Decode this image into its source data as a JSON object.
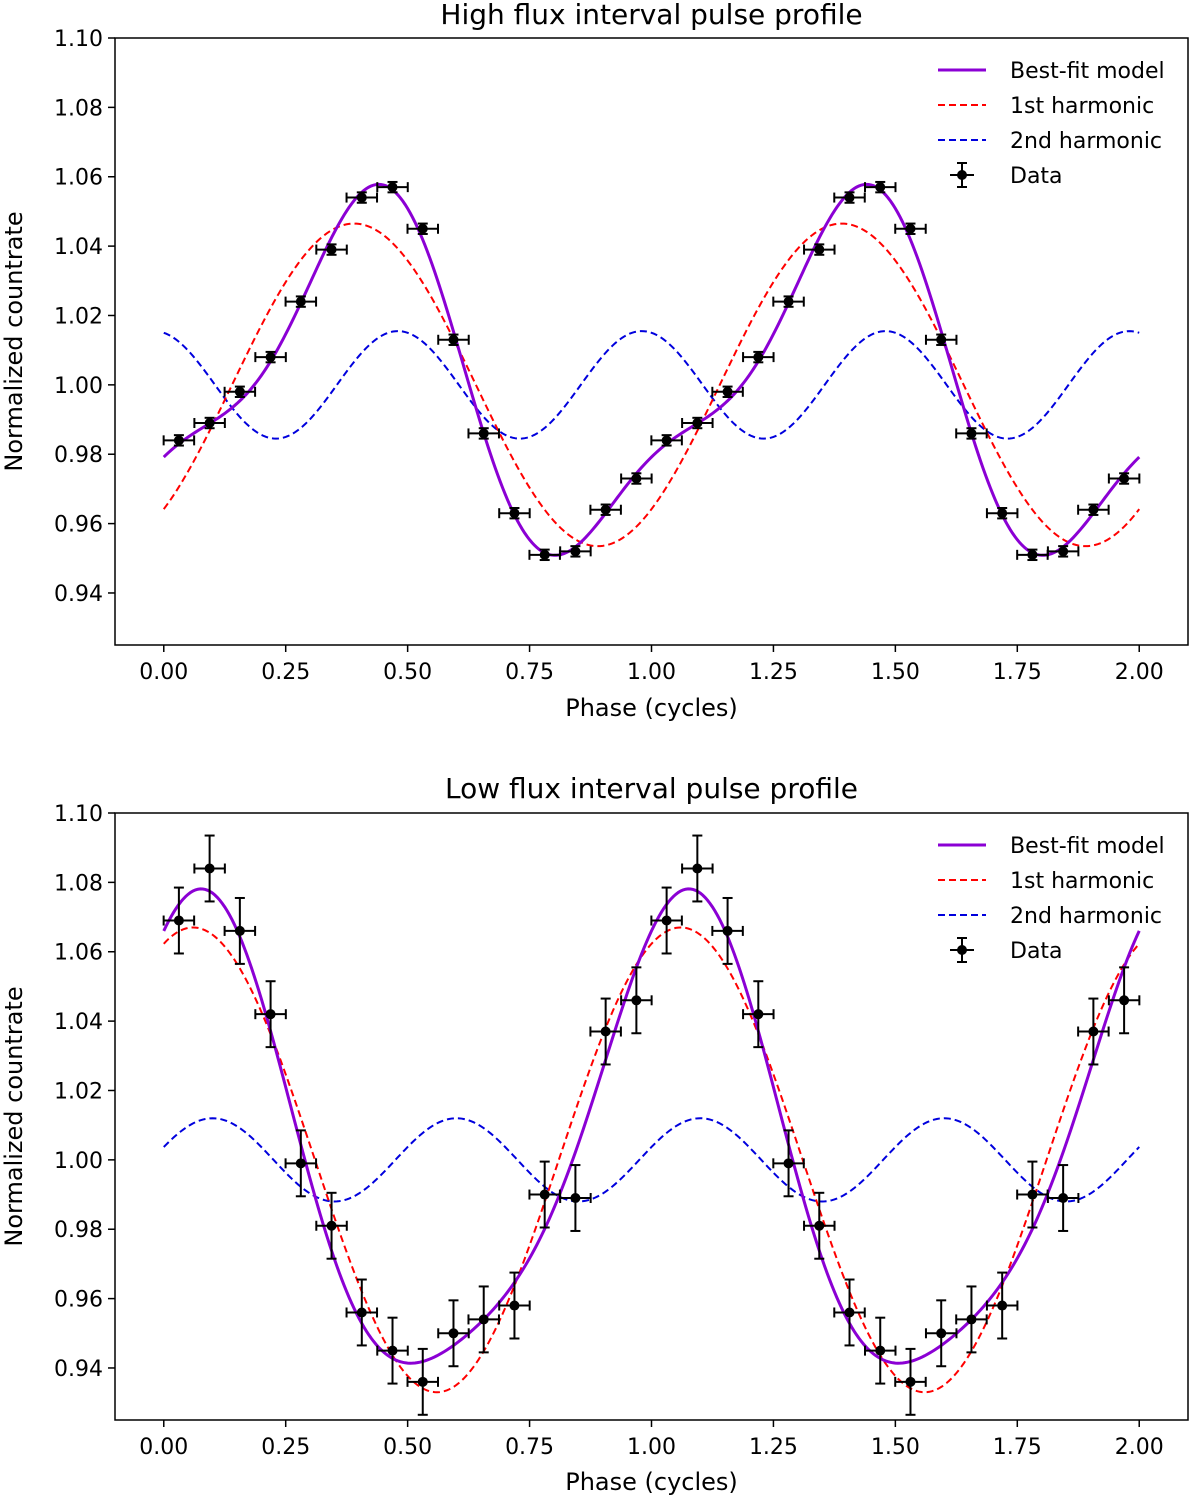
{
  "chart_data": [
    {
      "type": "line",
      "title": "High flux interval pulse profile",
      "xlabel": "Phase (cycles)",
      "ylabel": "Normalized countrate",
      "xlim": [
        -0.1,
        2.1
      ],
      "ylim": [
        0.925,
        1.1
      ],
      "xticks": [
        "0.00",
        "0.25",
        "0.50",
        "0.75",
        "1.00",
        "1.25",
        "1.50",
        "1.75",
        "2.00"
      ],
      "yticks": [
        "0.94",
        "0.96",
        "0.98",
        "1.00",
        "1.02",
        "1.04",
        "1.06",
        "1.08",
        "1.10"
      ],
      "legend_position": "top-right",
      "series": [
        {
          "name": "Best-fit model",
          "kind": "line",
          "color": "#8b00d4",
          "style": "solid",
          "model": {
            "mean": 1.0,
            "h1": {
              "amp": 0.0465,
              "peak": 0.39
            },
            "h2": {
              "amp": 0.0155,
              "peak": 0.48
            }
          }
        },
        {
          "name": "1st harmonic",
          "kind": "line",
          "color": "#ff0000",
          "style": "dashed",
          "model": {
            "mean": 1.0,
            "h1": {
              "amp": 0.0465,
              "peak": 0.39
            }
          }
        },
        {
          "name": "2nd harmonic",
          "kind": "line",
          "color": "#0000dd",
          "style": "dashed",
          "model": {
            "mean": 1.0,
            "h2": {
              "amp": 0.0155,
              "peak": 0.48
            }
          }
        },
        {
          "name": "Data",
          "kind": "errorbar",
          "color": "#000000",
          "xerr": 0.03125,
          "x": [
            0.031,
            0.094,
            0.156,
            0.219,
            0.281,
            0.344,
            0.406,
            0.469,
            0.531,
            0.594,
            0.656,
            0.719,
            0.781,
            0.844,
            0.906,
            0.969,
            1.031,
            1.094,
            1.156,
            1.219,
            1.281,
            1.344,
            1.406,
            1.469,
            1.531,
            1.594,
            1.656,
            1.719,
            1.781,
            1.844,
            1.906,
            1.969
          ],
          "y": [
            0.984,
            0.989,
            0.998,
            1.008,
            1.024,
            1.039,
            1.054,
            1.057,
            1.045,
            1.013,
            0.986,
            0.963,
            0.951,
            0.952,
            0.964,
            0.973,
            0.984,
            0.989,
            0.998,
            1.008,
            1.024,
            1.039,
            1.054,
            1.057,
            1.045,
            1.013,
            0.986,
            0.963,
            0.951,
            0.952,
            0.964,
            0.973
          ],
          "yerr": 0.0015
        }
      ]
    },
    {
      "type": "line",
      "title": "Low flux interval pulse profile",
      "xlabel": "Phase (cycles)",
      "ylabel": "Normalized countrate",
      "xlim": [
        -0.1,
        2.1
      ],
      "ylim": [
        0.925,
        1.1
      ],
      "xticks": [
        "0.00",
        "0.25",
        "0.50",
        "0.75",
        "1.00",
        "1.25",
        "1.50",
        "1.75",
        "2.00"
      ],
      "yticks": [
        "0.94",
        "0.96",
        "0.98",
        "1.00",
        "1.02",
        "1.04",
        "1.06",
        "1.08",
        "1.10"
      ],
      "legend_position": "top-right",
      "series": [
        {
          "name": "Best-fit model",
          "kind": "line",
          "color": "#8b00d4",
          "style": "solid",
          "model": {
            "mean": 1.0,
            "h1": {
              "amp": 0.067,
              "peak": 0.06
            },
            "h2": {
              "amp": 0.012,
              "peak": 0.1
            }
          }
        },
        {
          "name": "1st harmonic",
          "kind": "line",
          "color": "#ff0000",
          "style": "dashed",
          "model": {
            "mean": 1.0,
            "h1": {
              "amp": 0.067,
              "peak": 0.06
            }
          }
        },
        {
          "name": "2nd harmonic",
          "kind": "line",
          "color": "#0000dd",
          "style": "dashed",
          "model": {
            "mean": 1.0,
            "h2": {
              "amp": 0.012,
              "peak": 0.1
            }
          }
        },
        {
          "name": "Data",
          "kind": "errorbar",
          "color": "#000000",
          "xerr": 0.03125,
          "x": [
            0.031,
            0.094,
            0.156,
            0.219,
            0.281,
            0.344,
            0.406,
            0.469,
            0.531,
            0.594,
            0.656,
            0.719,
            0.781,
            0.844,
            0.906,
            0.969,
            1.031,
            1.094,
            1.156,
            1.219,
            1.281,
            1.344,
            1.406,
            1.469,
            1.531,
            1.594,
            1.656,
            1.719,
            1.781,
            1.844,
            1.906,
            1.969
          ],
          "y": [
            1.069,
            1.084,
            1.066,
            1.042,
            0.999,
            0.981,
            0.956,
            0.945,
            0.936,
            0.95,
            0.954,
            0.958,
            0.99,
            0.989,
            1.037,
            1.046,
            1.069,
            1.084,
            1.066,
            1.042,
            0.999,
            0.981,
            0.956,
            0.945,
            0.936,
            0.95,
            0.954,
            0.958,
            0.99,
            0.989,
            1.037,
            1.046
          ],
          "yerr": 0.0095
        }
      ]
    }
  ]
}
